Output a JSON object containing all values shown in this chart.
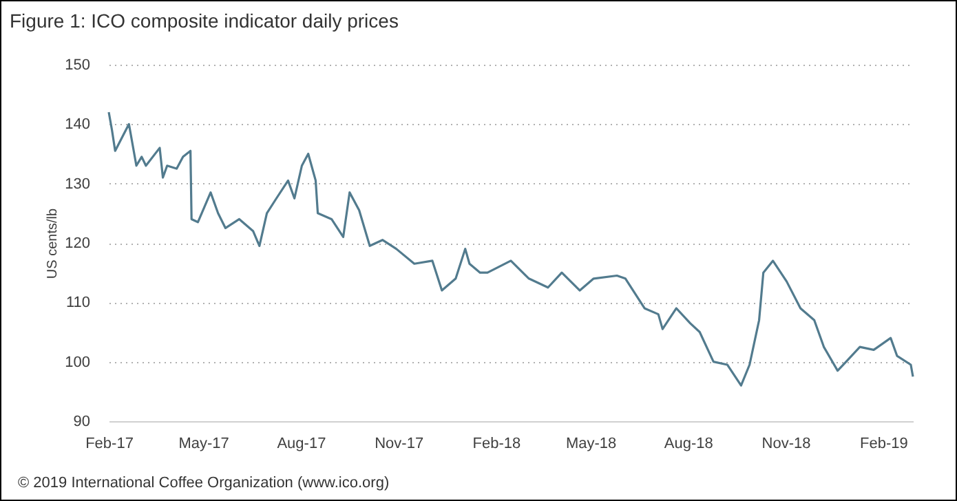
{
  "chart_data": {
    "type": "line",
    "title": "Figure 1: ICO composite indicator daily prices",
    "ylabel": "US cents/lb",
    "annotations": [
      "© 2019 International Coffee Organization (www.ico.org)"
    ],
    "x": [
      "2017-02-01",
      "2017-02-04",
      "2017-02-07",
      "2017-02-20",
      "2017-02-27",
      "2017-03-04",
      "2017-03-08",
      "2017-03-21",
      "2017-03-24",
      "2017-03-28",
      "2017-04-06",
      "2017-04-12",
      "2017-04-19",
      "2017-04-20",
      "2017-04-26",
      "2017-05-08",
      "2017-05-15",
      "2017-05-22",
      "2017-06-04",
      "2017-06-17",
      "2017-06-23",
      "2017-06-30",
      "2017-07-09",
      "2017-07-20",
      "2017-07-26",
      "2017-08-02",
      "2017-08-08",
      "2017-08-15",
      "2017-08-17",
      "2017-08-30",
      "2017-09-10",
      "2017-09-16",
      "2017-09-25",
      "2017-10-05",
      "2017-10-17",
      "2017-10-30",
      "2017-11-16",
      "2017-12-03",
      "2017-12-12",
      "2017-12-25",
      "2018-01-03",
      "2018-01-07",
      "2018-01-17",
      "2018-01-24",
      "2018-02-15",
      "2018-03-04",
      "2018-03-22",
      "2018-04-04",
      "2018-04-21",
      "2018-05-04",
      "2018-05-26",
      "2018-06-03",
      "2018-06-21",
      "2018-07-04",
      "2018-07-08",
      "2018-07-21",
      "2018-08-03",
      "2018-08-12",
      "2018-08-25",
      "2018-09-07",
      "2018-09-20",
      "2018-09-28",
      "2018-10-07",
      "2018-10-11",
      "2018-10-20",
      "2018-11-02",
      "2018-11-15",
      "2018-11-28",
      "2018-12-07",
      "2018-12-20",
      "2018-12-28",
      "2019-01-10",
      "2019-01-23",
      "2019-02-08",
      "2019-02-14",
      "2019-02-27",
      "2019-03-01"
    ],
    "series": [
      {
        "color": "#527b8e",
        "values": [
          142,
          139,
          135.5,
          140,
          133,
          134.5,
          133,
          136,
          131,
          133,
          132.5,
          134.5,
          135.5,
          124,
          123.5,
          128.5,
          125,
          122.5,
          124,
          122,
          119.5,
          125,
          127.5,
          130.5,
          127.5,
          133,
          135,
          130.5,
          125,
          124,
          121,
          128.5,
          125.5,
          119.5,
          120.5,
          119,
          116.5,
          117,
          112,
          114,
          119,
          116.5,
          115,
          115,
          117,
          114,
          112.5,
          115,
          112,
          114,
          114.5,
          114,
          109,
          108,
          105.5,
          109,
          106.5,
          105,
          100,
          99.5,
          96,
          99.5,
          107,
          115,
          117,
          113.5,
          109,
          107,
          102.5,
          98.5,
          100,
          102.5,
          102,
          104,
          101,
          99.5,
          97.5
        ]
      }
    ],
    "xlim": [
      "2017-02-01",
      "2019-03-01"
    ],
    "xticks": [
      {
        "value": "2017-02-01",
        "label": "Feb-17"
      },
      {
        "value": "2017-05-01",
        "label": "May-17"
      },
      {
        "value": "2017-08-01",
        "label": "Aug-17"
      },
      {
        "value": "2017-11-01",
        "label": "Nov-17"
      },
      {
        "value": "2018-02-01",
        "label": "Feb-18"
      },
      {
        "value": "2018-05-01",
        "label": "May-18"
      },
      {
        "value": "2018-08-01",
        "label": "Aug-18"
      },
      {
        "value": "2018-11-01",
        "label": "Nov-18"
      },
      {
        "value": "2019-02-01",
        "label": "Feb-19"
      }
    ],
    "ylim": [
      90,
      150
    ],
    "yticks": [
      90,
      100,
      110,
      120,
      130,
      140,
      150
    ],
    "grid": "y",
    "line_style": "solid",
    "marker": "none"
  }
}
